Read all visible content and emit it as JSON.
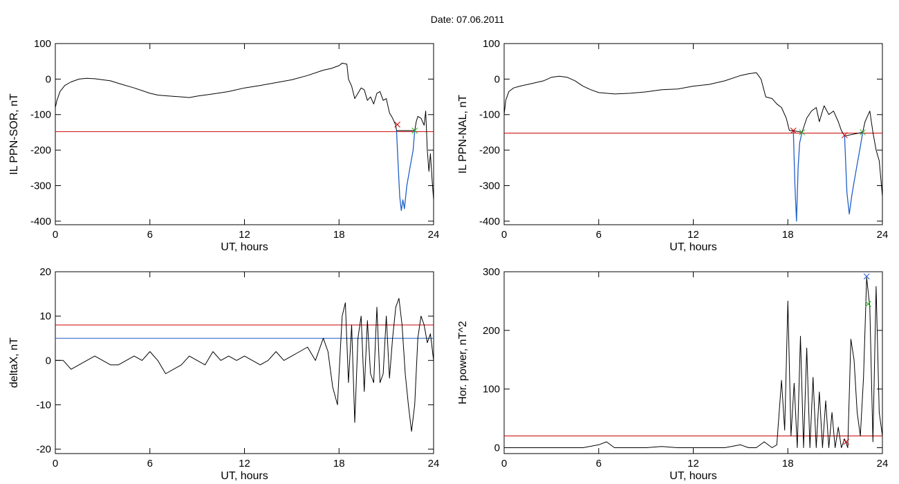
{
  "figure": {
    "title": "Date:  07.06.2011"
  },
  "chart_data": [
    {
      "type": "line",
      "xlabel": "UT, hours",
      "ylabel": "IL PPN-SOR, nT",
      "xlim": [
        0,
        24
      ],
      "ylim": [
        -410,
        100
      ],
      "xticks": [
        0,
        6,
        12,
        18,
        24
      ],
      "yticks": [
        100,
        0,
        -100,
        -200,
        -300,
        -400
      ],
      "grid": false,
      "series": [
        {
          "color": "#000000",
          "x": [
            0,
            0.1,
            0.3,
            0.6,
            1,
            1.5,
            2,
            2.5,
            3,
            3.5,
            4,
            5,
            6,
            6.5,
            7,
            8,
            8.5,
            9,
            10,
            11,
            12,
            13,
            14,
            15,
            16,
            17,
            17.5,
            18,
            18.2,
            18.5,
            18.6,
            18.8,
            19,
            19.2,
            19.4,
            19.6,
            19.8,
            20,
            20.2,
            20.4,
            20.6,
            20.8,
            21,
            21.2,
            21.4,
            21.6,
            21.65,
            22.8,
            22.9,
            23,
            23.2,
            23.4,
            23.5,
            23.6,
            23.7,
            23.8,
            23.9,
            24
          ],
          "y": [
            -80,
            -60,
            -35,
            -18,
            -8,
            0,
            2,
            1,
            -2,
            -5,
            -12,
            -25,
            -40,
            -45,
            -47,
            -50,
            -52,
            -48,
            -42,
            -35,
            -25,
            -18,
            -10,
            -2,
            10,
            25,
            30,
            38,
            45,
            42,
            0,
            -20,
            -55,
            -40,
            -25,
            -30,
            -60,
            -50,
            -70,
            -40,
            -35,
            -60,
            -55,
            -95,
            -110,
            -130,
            -145,
            -145,
            -120,
            -105,
            -110,
            -130,
            -90,
            -200,
            -260,
            -210,
            -280,
            -340
          ]
        },
        {
          "color": "#1f5fc8",
          "x": [
            21.65,
            21.75,
            21.85,
            21.95,
            22.05,
            22.15,
            22.3,
            22.5,
            22.7,
            22.8
          ],
          "y": [
            -145,
            -240,
            -330,
            -370,
            -340,
            -365,
            -300,
            -250,
            -200,
            -145
          ]
        }
      ],
      "hlines": [
        {
          "y": -148,
          "color": "#cc0000"
        }
      ],
      "markers": [
        {
          "x": 21.7,
          "y": -128,
          "color": "#cc0000"
        },
        {
          "x": 22.8,
          "y": -145,
          "color": "#22aa22"
        }
      ]
    },
    {
      "type": "line",
      "xlabel": "UT, hours",
      "ylabel": "IL PPN-NAL, nT",
      "xlim": [
        0,
        24
      ],
      "ylim": [
        -410,
        100
      ],
      "xticks": [
        0,
        6,
        12,
        18,
        24
      ],
      "yticks": [
        100,
        0,
        -100,
        -200,
        -300,
        -400
      ],
      "grid": false,
      "series": [
        {
          "color": "#000000",
          "x": [
            0,
            0.1,
            0.3,
            0.6,
            1,
            1.5,
            2,
            2.5,
            3,
            3.5,
            4,
            4.5,
            5,
            5.5,
            6,
            7,
            8,
            9,
            10,
            11,
            12,
            13,
            14,
            15,
            15.5,
            16,
            16.3,
            16.6,
            17,
            17.3,
            17.6,
            17.9,
            18.1,
            18.35,
            18.9,
            19.2,
            19.5,
            19.8,
            20,
            20.3,
            20.6,
            20.9,
            21.2,
            21.4,
            21.6,
            22.75,
            22.9,
            23.1,
            23.2,
            23.4,
            23.6,
            23.8,
            24
          ],
          "y": [
            -100,
            -60,
            -35,
            -25,
            -20,
            -15,
            -10,
            -5,
            5,
            8,
            5,
            -5,
            -20,
            -30,
            -38,
            -42,
            -40,
            -36,
            -30,
            -28,
            -20,
            -15,
            -5,
            10,
            15,
            18,
            0,
            -50,
            -55,
            -70,
            -80,
            -110,
            -145,
            -145,
            -150,
            -110,
            -90,
            -80,
            -120,
            -75,
            -100,
            -90,
            -120,
            -145,
            -160,
            -150,
            -120,
            -100,
            -90,
            -150,
            -200,
            -230,
            -330
          ]
        },
        {
          "color": "#1f5fc8",
          "x": [
            18.35,
            18.45,
            18.55,
            18.65,
            18.75,
            18.9
          ],
          "y": [
            -145,
            -300,
            -400,
            -250,
            -180,
            -150
          ]
        },
        {
          "color": "#1f5fc8",
          "x": [
            21.6,
            21.75,
            21.9,
            22.05,
            22.2,
            22.4,
            22.6,
            22.75
          ],
          "y": [
            -160,
            -320,
            -380,
            -330,
            -290,
            -240,
            -190,
            -150
          ]
        }
      ],
      "hlines": [
        {
          "y": -152,
          "color": "#cc0000"
        }
      ],
      "markers": [
        {
          "x": 18.35,
          "y": -145,
          "color": "#cc0000"
        },
        {
          "x": 18.9,
          "y": -150,
          "color": "#22aa22"
        },
        {
          "x": 21.6,
          "y": -158,
          "color": "#cc0000"
        },
        {
          "x": 22.75,
          "y": -150,
          "color": "#22aa22"
        }
      ]
    },
    {
      "type": "line",
      "xlabel": "UT, hours",
      "ylabel": "deltaX, nT",
      "xlim": [
        0,
        24
      ],
      "ylim": [
        -21,
        20
      ],
      "xticks": [
        0,
        6,
        12,
        18,
        24
      ],
      "yticks": [
        20,
        10,
        0,
        -10,
        -20
      ],
      "grid": false,
      "series": [
        {
          "color": "#000000",
          "x": [
            0,
            0.5,
            1,
            1.5,
            2,
            2.5,
            3,
            3.5,
            4,
            4.5,
            5,
            5.5,
            6,
            6.5,
            7,
            7.5,
            8,
            8.5,
            9,
            9.5,
            10,
            10.5,
            11,
            11.5,
            12,
            12.5,
            13,
            13.5,
            14,
            14.5,
            15,
            15.5,
            16,
            16.5,
            17,
            17.3,
            17.6,
            17.9,
            18,
            18.2,
            18.4,
            18.6,
            18.8,
            19,
            19.2,
            19.4,
            19.6,
            19.8,
            20,
            20.2,
            20.4,
            20.6,
            20.8,
            21,
            21.2,
            21.4,
            21.6,
            21.8,
            22,
            22.2,
            22.4,
            22.6,
            22.8,
            23,
            23.2,
            23.4,
            23.6,
            23.8,
            24
          ],
          "y": [
            0,
            0,
            -2,
            -1,
            0,
            1,
            0,
            -1,
            -1,
            0,
            1,
            0,
            2,
            0,
            -3,
            -2,
            -1,
            1,
            0,
            -1,
            2,
            0,
            1,
            0,
            1,
            0,
            -1,
            0,
            2,
            0,
            1,
            2,
            3,
            0,
            5,
            2,
            -6,
            -10,
            -3,
            10,
            13,
            -5,
            8,
            -14,
            5,
            10,
            -7,
            9,
            -3,
            -5,
            12,
            -5,
            -3,
            10,
            -4,
            5,
            12,
            14,
            8,
            -3,
            -10,
            -16,
            -10,
            5,
            10,
            8,
            4,
            6,
            0
          ]
        }
      ],
      "hlines": [
        {
          "y": 8,
          "color": "#cc0000"
        },
        {
          "y": 5,
          "color": "#1f5fc8"
        }
      ],
      "markers": []
    },
    {
      "type": "line",
      "xlabel": "UT, hours",
      "ylabel": "Hor. power, nT^2",
      "xlim": [
        0,
        24
      ],
      "ylim": [
        -10,
        300
      ],
      "xticks": [
        0,
        6,
        12,
        18,
        24
      ],
      "yticks": [
        300,
        200,
        100,
        0
      ],
      "grid": false,
      "series": [
        {
          "color": "#000000",
          "x": [
            0,
            1,
            2,
            3,
            4,
            5,
            6,
            6.5,
            7,
            8,
            9,
            10,
            11,
            12,
            13,
            14,
            15,
            15.5,
            16,
            16.5,
            17,
            17.3,
            17.6,
            17.8,
            18,
            18.2,
            18.4,
            18.6,
            18.8,
            19,
            19.2,
            19.4,
            19.6,
            19.8,
            20,
            20.2,
            20.4,
            20.6,
            20.8,
            21,
            21.2,
            21.4,
            21.6,
            21.8,
            22,
            22.2,
            22.4,
            22.6,
            22.8,
            23,
            23.2,
            23.4,
            23.6,
            23.8,
            24
          ],
          "y": [
            0,
            0,
            0,
            0,
            0,
            0,
            5,
            10,
            0,
            0,
            0,
            2,
            0,
            0,
            0,
            0,
            5,
            0,
            0,
            10,
            0,
            5,
            115,
            30,
            250,
            20,
            110,
            0,
            190,
            0,
            170,
            0,
            120,
            0,
            95,
            0,
            80,
            0,
            60,
            0,
            35,
            0,
            15,
            0,
            185,
            150,
            60,
            20,
            120,
            290,
            240,
            10,
            275,
            60,
            20
          ]
        }
      ],
      "hlines": [
        {
          "y": 20,
          "color": "#cc0000"
        }
      ],
      "markers": [
        {
          "x": 23.0,
          "y": 292,
          "color": "#1f5fc8"
        },
        {
          "x": 23.1,
          "y": 245,
          "color": "#22aa22"
        },
        {
          "x": 21.7,
          "y": 10,
          "color": "#cc0000"
        }
      ]
    }
  ]
}
